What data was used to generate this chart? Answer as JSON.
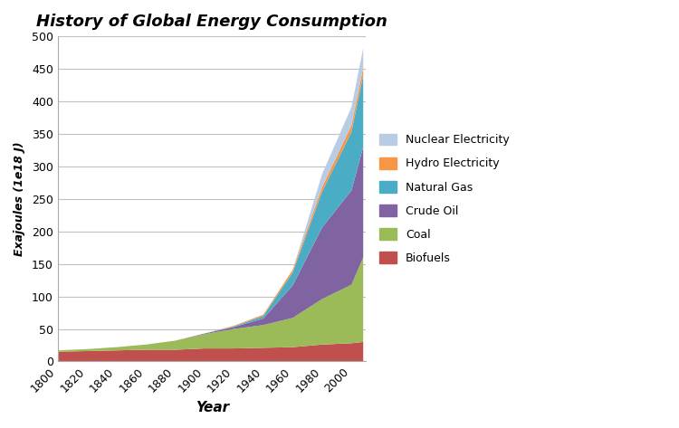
{
  "title": "History of Global Energy Consumption",
  "xlabel": "Year",
  "ylabel": "Exajoules (1e18 J)",
  "years": [
    1800,
    1820,
    1840,
    1860,
    1880,
    1900,
    1920,
    1940,
    1960,
    1980,
    2000,
    2008
  ],
  "biofuels": [
    15,
    16,
    17,
    18,
    18,
    20,
    20,
    21,
    22,
    26,
    28,
    30
  ],
  "coal": [
    2,
    3,
    5,
    8,
    14,
    22,
    30,
    35,
    45,
    70,
    90,
    130
  ],
  "crude_oil": [
    0,
    0,
    0,
    0,
    0,
    1,
    3,
    10,
    50,
    110,
    145,
    170
  ],
  "natural_gas": [
    0,
    0,
    0,
    0,
    0,
    0,
    1,
    4,
    20,
    55,
    90,
    110
  ],
  "hydro_electricity": [
    0,
    0,
    0,
    0,
    0,
    0,
    1,
    2,
    4,
    7,
    10,
    12
  ],
  "nuclear_electricity": [
    0,
    0,
    0,
    0,
    0,
    0,
    0,
    0,
    0,
    20,
    28,
    30
  ],
  "colors": {
    "biofuels": "#c0504d",
    "coal": "#9bbb59",
    "crude_oil": "#8064a2",
    "natural_gas": "#4bacc6",
    "hydro_electricity": "#f79646",
    "nuclear_electricity": "#b8cce4"
  },
  "legend_labels": [
    "Nuclear Electricity",
    "Hydro Electricity",
    "Natural Gas",
    "Crude Oil",
    "Coal",
    "Biofuels"
  ],
  "ylim": [
    0,
    500
  ],
  "yticks": [
    0,
    50,
    100,
    150,
    200,
    250,
    300,
    350,
    400,
    450,
    500
  ],
  "xlim_start": 1800,
  "xlim_end": 2010,
  "xtick_labels": [
    "1800",
    "1820",
    "1840",
    "1860",
    "1880",
    "1900",
    "1920",
    "1940",
    "1960",
    "1980",
    "2000"
  ],
  "xtick_positions": [
    1800,
    1820,
    1840,
    1860,
    1880,
    1900,
    1920,
    1940,
    1960,
    1980,
    2000
  ],
  "background_color": "#ffffff",
  "plot_background": "#ffffff"
}
